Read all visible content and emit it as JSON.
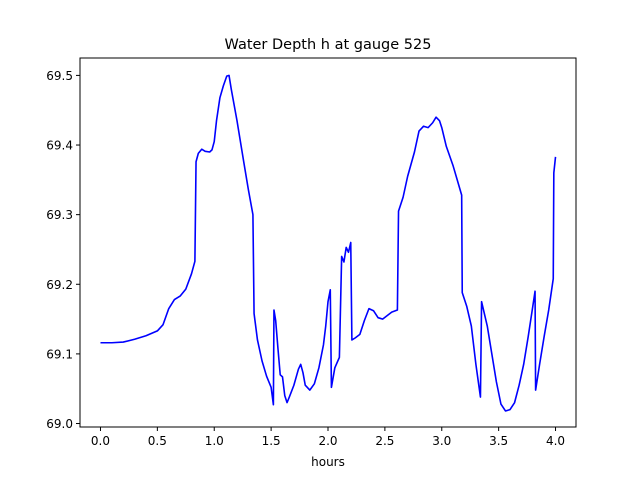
{
  "chart_data": {
    "type": "line",
    "title": "Water Depth h at gauge 525",
    "xlabel": "hours",
    "ylabel": "",
    "xlim": [
      -0.18,
      4.18
    ],
    "ylim": [
      68.995,
      69.525
    ],
    "xticks": [
      0.0,
      0.5,
      1.0,
      1.5,
      2.0,
      2.5,
      3.0,
      3.5,
      4.0
    ],
    "xtick_labels": [
      "0.0",
      "0.5",
      "1.0",
      "1.5",
      "2.0",
      "2.5",
      "3.0",
      "3.5",
      "4.0"
    ],
    "yticks": [
      69.0,
      69.1,
      69.2,
      69.3,
      69.4,
      69.5
    ],
    "ytick_labels": [
      "69.0",
      "69.1",
      "69.2",
      "69.3",
      "69.4",
      "69.5"
    ],
    "grid": false,
    "series": [
      {
        "color": "#0000ff",
        "points": [
          [
            0.0,
            69.116
          ],
          [
            0.1,
            69.116
          ],
          [
            0.2,
            69.117
          ],
          [
            0.3,
            69.121
          ],
          [
            0.4,
            69.126
          ],
          [
            0.5,
            69.133
          ],
          [
            0.55,
            69.142
          ],
          [
            0.6,
            69.165
          ],
          [
            0.65,
            69.178
          ],
          [
            0.7,
            69.183
          ],
          [
            0.75,
            69.193
          ],
          [
            0.8,
            69.215
          ],
          [
            0.83,
            69.233
          ],
          [
            0.84,
            69.376
          ],
          [
            0.86,
            69.388
          ],
          [
            0.89,
            69.394
          ],
          [
            0.92,
            69.391
          ],
          [
            0.96,
            69.39
          ],
          [
            0.98,
            69.393
          ],
          [
            1.0,
            69.405
          ],
          [
            1.02,
            69.435
          ],
          [
            1.05,
            69.468
          ],
          [
            1.08,
            69.485
          ],
          [
            1.11,
            69.499
          ],
          [
            1.13,
            69.5
          ],
          [
            1.15,
            69.48
          ],
          [
            1.2,
            69.435
          ],
          [
            1.26,
            69.375
          ],
          [
            1.3,
            69.336
          ],
          [
            1.34,
            69.3
          ],
          [
            1.35,
            69.158
          ],
          [
            1.38,
            69.12
          ],
          [
            1.42,
            69.09
          ],
          [
            1.46,
            69.068
          ],
          [
            1.5,
            69.052
          ],
          [
            1.52,
            69.027
          ],
          [
            1.525,
            69.163
          ],
          [
            1.54,
            69.148
          ],
          [
            1.56,
            69.108
          ],
          [
            1.58,
            69.07
          ],
          [
            1.6,
            69.067
          ],
          [
            1.62,
            69.04
          ],
          [
            1.64,
            69.03
          ],
          [
            1.66,
            69.038
          ],
          [
            1.7,
            69.055
          ],
          [
            1.74,
            69.078
          ],
          [
            1.76,
            69.085
          ],
          [
            1.78,
            69.073
          ],
          [
            1.8,
            69.055
          ],
          [
            1.84,
            69.048
          ],
          [
            1.88,
            69.057
          ],
          [
            1.92,
            69.08
          ],
          [
            1.96,
            69.113
          ],
          [
            1.98,
            69.14
          ],
          [
            2.0,
            69.175
          ],
          [
            2.02,
            69.192
          ],
          [
            2.03,
            69.052
          ],
          [
            2.06,
            69.08
          ],
          [
            2.1,
            69.095
          ],
          [
            2.12,
            69.24
          ],
          [
            2.14,
            69.232
          ],
          [
            2.16,
            69.253
          ],
          [
            2.18,
            69.246
          ],
          [
            2.2,
            69.26
          ],
          [
            2.21,
            69.12
          ],
          [
            2.24,
            69.123
          ],
          [
            2.28,
            69.128
          ],
          [
            2.32,
            69.148
          ],
          [
            2.36,
            69.165
          ],
          [
            2.4,
            69.162
          ],
          [
            2.44,
            69.152
          ],
          [
            2.48,
            69.15
          ],
          [
            2.52,
            69.155
          ],
          [
            2.56,
            69.16
          ],
          [
            2.61,
            69.163
          ],
          [
            2.62,
            69.305
          ],
          [
            2.66,
            69.325
          ],
          [
            2.7,
            69.355
          ],
          [
            2.76,
            69.39
          ],
          [
            2.8,
            69.42
          ],
          [
            2.84,
            69.427
          ],
          [
            2.88,
            69.425
          ],
          [
            2.92,
            69.432
          ],
          [
            2.95,
            69.44
          ],
          [
            2.98,
            69.435
          ],
          [
            3.0,
            69.425
          ],
          [
            3.04,
            69.398
          ],
          [
            3.1,
            69.37
          ],
          [
            3.15,
            69.342
          ],
          [
            3.175,
            69.328
          ],
          [
            3.18,
            69.188
          ],
          [
            3.22,
            69.168
          ],
          [
            3.26,
            69.14
          ],
          [
            3.3,
            69.085
          ],
          [
            3.34,
            69.038
          ],
          [
            3.35,
            69.175
          ],
          [
            3.4,
            69.14
          ],
          [
            3.44,
            69.1
          ],
          [
            3.48,
            69.06
          ],
          [
            3.52,
            69.028
          ],
          [
            3.56,
            69.018
          ],
          [
            3.6,
            69.02
          ],
          [
            3.64,
            69.03
          ],
          [
            3.68,
            69.055
          ],
          [
            3.72,
            69.085
          ],
          [
            3.76,
            69.125
          ],
          [
            3.8,
            69.168
          ],
          [
            3.82,
            69.19
          ],
          [
            3.825,
            69.048
          ],
          [
            3.86,
            69.085
          ],
          [
            3.9,
            69.125
          ],
          [
            3.94,
            69.163
          ],
          [
            3.98,
            69.208
          ],
          [
            3.985,
            69.36
          ],
          [
            4.0,
            69.383
          ]
        ]
      }
    ]
  }
}
